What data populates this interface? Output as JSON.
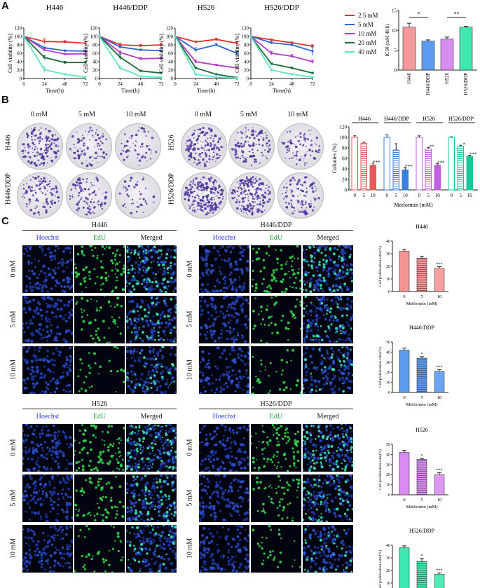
{
  "panel_labels": [
    "A",
    "B",
    "C"
  ],
  "panel_a": {
    "line_charts": [
      {
        "title": "H446"
      },
      {
        "title": "H446/DDP"
      },
      {
        "title": "H526"
      },
      {
        "title": "H526/DDP"
      }
    ],
    "ylabel": "Cell viability (%)",
    "xlabel": "Time(h)",
    "legend": [
      {
        "name": "2.5 mM",
        "color": "#e8312f"
      },
      {
        "name": "5 mM",
        "color": "#2e66c9"
      },
      {
        "name": "10 mM",
        "color": "#b43cc4"
      },
      {
        "name": "20 mM",
        "color": "#1d6a3a"
      },
      {
        "name": "40 mM",
        "color": "#5fe6c2"
      }
    ],
    "ic50_ylabel": "IC50 (mM 48 h)",
    "ic50_sig": [
      "*",
      "**"
    ]
  },
  "panel_b": {
    "dose_headers": [
      "0 mM",
      "5 mM",
      "10 mM"
    ],
    "row_labels": [
      "H446",
      "H446/DDP",
      "H526",
      "H526/DDP"
    ],
    "bar_ylabel": "Colonies (%)",
    "bar_xlabel": "Metformin (mM)",
    "group_titles": [
      "H446",
      "H446/DDP",
      "H526",
      "H526/DDP"
    ]
  },
  "panel_c": {
    "stain_headers": [
      {
        "text": "Hoechst",
        "color": "#2b3fe0"
      },
      {
        "text": "EdU",
        "color": "#1fa33a"
      },
      {
        "text": "Merged",
        "color": "#111111"
      }
    ],
    "dose_rows": [
      "0 mM",
      "5 mM",
      "10 mM"
    ],
    "cell_lines": [
      "H446",
      "H446/DDP",
      "H526",
      "H526/DDP"
    ],
    "ylabel": "Cell proliferation ratio(%)",
    "xlabel": "Metformin (mM)"
  },
  "chart_data": [
    {
      "type": "line",
      "title": "H446",
      "x": [
        0,
        24,
        48,
        72
      ],
      "xlabel": "Time(h)",
      "ylabel": "Cell viability (%)",
      "ylim": [
        0,
        120
      ],
      "series": [
        {
          "name": "2.5 mM",
          "values": [
            100,
            88,
            87,
            84
          ],
          "err": [
            0,
            6,
            3,
            5
          ]
        },
        {
          "name": "5 mM",
          "values": [
            100,
            73,
            66,
            65
          ],
          "err": [
            0,
            2,
            2,
            3
          ]
        },
        {
          "name": "10 mM",
          "values": [
            100,
            68,
            58,
            59
          ],
          "err": [
            0,
            3,
            2,
            6
          ]
        },
        {
          "name": "20 mM",
          "values": [
            100,
            50,
            38,
            38
          ],
          "err": [
            0,
            5,
            3,
            2
          ]
        },
        {
          "name": "40 mM",
          "values": [
            100,
            21,
            10,
            3
          ],
          "err": [
            0,
            6,
            1,
            1
          ]
        }
      ]
    },
    {
      "type": "line",
      "title": "H446/DDP",
      "x": [
        0,
        24,
        48,
        72
      ],
      "xlabel": "Time(h)",
      "ylabel": "Cell viability (%)",
      "ylim": [
        0,
        120
      ],
      "series": [
        {
          "name": "2.5 mM",
          "values": [
            100,
            80,
            78,
            80
          ],
          "err": [
            0,
            4,
            3,
            4
          ]
        },
        {
          "name": "5 mM",
          "values": [
            100,
            75,
            68,
            66
          ],
          "err": [
            0,
            3,
            2,
            2
          ]
        },
        {
          "name": "10 mM",
          "values": [
            100,
            62,
            47,
            48
          ],
          "err": [
            0,
            3,
            3,
            3
          ]
        },
        {
          "name": "20 mM",
          "values": [
            100,
            51,
            18,
            13
          ],
          "err": [
            0,
            7,
            2,
            2
          ]
        },
        {
          "name": "40 mM",
          "values": [
            100,
            25,
            5,
            3
          ],
          "err": [
            0,
            5,
            1,
            1
          ]
        }
      ]
    },
    {
      "type": "line",
      "title": "H526",
      "x": [
        0,
        24,
        48,
        72
      ],
      "xlabel": "Time(h)",
      "ylabel": "Cell viability (%)",
      "ylim": [
        0,
        120
      ],
      "series": [
        {
          "name": "2.5 mM",
          "values": [
            100,
            87,
            93,
            84
          ],
          "err": [
            0,
            2,
            3,
            3
          ]
        },
        {
          "name": "5 mM",
          "values": [
            100,
            68,
            80,
            60
          ],
          "err": [
            0,
            5,
            3,
            5
          ]
        },
        {
          "name": "10 mM",
          "values": [
            100,
            40,
            32,
            25
          ],
          "err": [
            0,
            4,
            2,
            2
          ]
        },
        {
          "name": "20 mM",
          "values": [
            100,
            25,
            10,
            2
          ],
          "err": [
            0,
            2,
            1,
            1
          ]
        },
        {
          "name": "40 mM",
          "values": [
            100,
            10,
            3,
            1
          ],
          "err": [
            0,
            2,
            1,
            1
          ]
        }
      ]
    },
    {
      "type": "line",
      "title": "H526/DDP",
      "x": [
        0,
        24,
        48,
        72
      ],
      "xlabel": "Time(h)",
      "ylabel": "Cell viability (%)",
      "ylim": [
        0,
        120
      ],
      "series": [
        {
          "name": "2.5 mM",
          "values": [
            100,
            92,
            85,
            77
          ],
          "err": [
            0,
            2,
            2,
            3
          ]
        },
        {
          "name": "5 mM",
          "values": [
            100,
            85,
            80,
            65
          ],
          "err": [
            0,
            3,
            3,
            10
          ]
        },
        {
          "name": "10 mM",
          "values": [
            100,
            60,
            53,
            40
          ],
          "err": [
            0,
            4,
            4,
            4
          ]
        },
        {
          "name": "20 mM",
          "values": [
            100,
            35,
            25,
            13
          ],
          "err": [
            0,
            2,
            2,
            2
          ]
        },
        {
          "name": "40 mM",
          "values": [
            100,
            20,
            10,
            3
          ],
          "err": [
            0,
            2,
            2,
            1
          ]
        }
      ]
    },
    {
      "type": "bar",
      "categories": [
        "H446",
        "H446/DDP",
        "H526",
        "H526/DDP"
      ],
      "values": [
        10.8,
        7.3,
        7.8,
        10.8
      ],
      "err": [
        1.0,
        0.3,
        0.5,
        0.2
      ],
      "colors": [
        "#f49a9a",
        "#5b9bf0",
        "#d98cf0",
        "#3ee8b0"
      ],
      "ylabel": "IC50 (mM 48 h)",
      "ylim": [
        0,
        15
      ],
      "yticks": [
        0,
        5,
        10,
        15
      ]
    },
    {
      "type": "bar",
      "title": "Colonies",
      "xlabel": "Metformin (mM)",
      "ylabel": "Colonies (%)",
      "ylim": [
        0,
        120
      ],
      "groups": [
        {
          "name": "H446",
          "x": [
            0,
            5,
            10
          ],
          "values": [
            100,
            89,
            47
          ],
          "err": [
            3,
            2,
            4
          ],
          "sig": [
            "",
            "",
            "***"
          ],
          "color": "#e85a5a"
        },
        {
          "name": "H446/DDP",
          "x": [
            0,
            5,
            10
          ],
          "values": [
            100,
            76,
            38
          ],
          "err": [
            5,
            12,
            5
          ],
          "sig": [
            "",
            "",
            "***"
          ],
          "color": "#3b7fe0"
        },
        {
          "name": "H526",
          "x": [
            0,
            5,
            10
          ],
          "values": [
            100,
            78,
            47
          ],
          "err": [
            3,
            3,
            3
          ],
          "sig": [
            "",
            "**",
            "***"
          ],
          "color": "#c060e0"
        },
        {
          "name": "H526/DDP",
          "x": [
            0,
            5,
            10
          ],
          "values": [
            100,
            83,
            64
          ],
          "err": [
            1,
            2,
            2
          ],
          "sig": [
            "",
            "*",
            "***"
          ],
          "color": "#19c79a"
        }
      ]
    },
    {
      "type": "bar",
      "title": "H446",
      "categories": [
        "0",
        "5",
        "10"
      ],
      "values": [
        32,
        26.5,
        18.5
      ],
      "err": [
        1.5,
        1.5,
        1.2
      ],
      "sig": [
        "",
        "",
        "***"
      ],
      "color": "#f59595",
      "ylim": [
        0,
        40
      ],
      "yticks": [
        0,
        10,
        20,
        30,
        40
      ],
      "xlabel": "Metformin (mM)",
      "ylabel": "Cell proliferation ratio(%)"
    },
    {
      "type": "bar",
      "title": "H446/DDP",
      "categories": [
        "0",
        "5",
        "10"
      ],
      "values": [
        42,
        34,
        21
      ],
      "err": [
        2,
        1.5,
        1.5
      ],
      "sig": [
        "",
        "*",
        "***"
      ],
      "color": "#5b9bf0",
      "ylim": [
        0,
        50
      ],
      "yticks": [
        0,
        10,
        20,
        30,
        40,
        50
      ],
      "xlabel": "Metformin (mM)",
      "ylabel": "Cell proliferation ratio(%)"
    },
    {
      "type": "bar",
      "title": "H526",
      "categories": [
        "0",
        "5",
        "10"
      ],
      "values": [
        42,
        35,
        20
      ],
      "err": [
        2,
        1,
        2
      ],
      "sig": [
        "",
        "*",
        "***"
      ],
      "color": "#d98cf0",
      "ylim": [
        0,
        50
      ],
      "yticks": [
        0,
        10,
        20,
        30,
        40,
        50
      ],
      "xlabel": "Metformin (mM)",
      "ylabel": "Cell proliferation ratio(%)"
    },
    {
      "type": "bar",
      "title": "H526/DDP",
      "categories": [
        "0",
        "5",
        "10"
      ],
      "values": [
        38,
        27,
        17
      ],
      "err": [
        1.5,
        2.5,
        1
      ],
      "sig": [
        "",
        "*",
        "***"
      ],
      "color": "#3ee8b0",
      "ylim": [
        0,
        40
      ],
      "yticks": [
        0,
        10,
        20,
        30,
        40
      ],
      "xlabel": "Metformin (mM)",
      "ylabel": "Cell proliferation ratio(%)"
    }
  ]
}
